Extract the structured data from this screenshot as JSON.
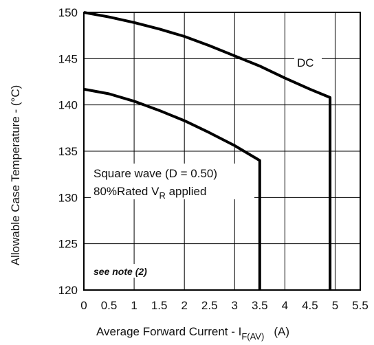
{
  "chart_data": {
    "type": "line",
    "xlabel": "Average Forward Current - I",
    "xlabel_subscript": "F(AV)",
    "xlabel_unit": "(A)",
    "ylabel": "Allowable Case Temperature - (°C)",
    "xlim": [
      0,
      5.5
    ],
    "ylim": [
      120,
      150
    ],
    "xticks": [
      "0",
      "0.5",
      "1",
      "1.5",
      "2",
      "2.5",
      "3",
      "3.5",
      "4",
      "4.5",
      "5",
      "5.5"
    ],
    "yticks": [
      "120",
      "125",
      "130",
      "135",
      "140",
      "145",
      "150"
    ],
    "grid": true,
    "series": [
      {
        "name": "DC",
        "x": [
          0,
          0.5,
          1.0,
          1.5,
          2.0,
          2.5,
          3.0,
          3.5,
          4.0,
          4.5,
          4.9,
          4.9
        ],
        "y": [
          150,
          149.5,
          148.9,
          148.2,
          147.4,
          146.4,
          145.3,
          144.2,
          142.9,
          141.7,
          140.8,
          120
        ]
      },
      {
        "name": "Square wave (D = 0.50)",
        "x": [
          0,
          0.5,
          1.0,
          1.5,
          2.0,
          2.5,
          3.0,
          3.5,
          3.5
        ],
        "y": [
          141.7,
          141.2,
          140.4,
          139.4,
          138.3,
          137.0,
          135.6,
          134.0,
          120
        ]
      }
    ],
    "annotations": {
      "dc_label": "DC",
      "square_line1": "Square wave (D = 0.50)",
      "square_line2_pre": "80%Rated V",
      "square_line2_sub": "R",
      "square_line2_post": " applied",
      "note": "see note (2)"
    }
  }
}
